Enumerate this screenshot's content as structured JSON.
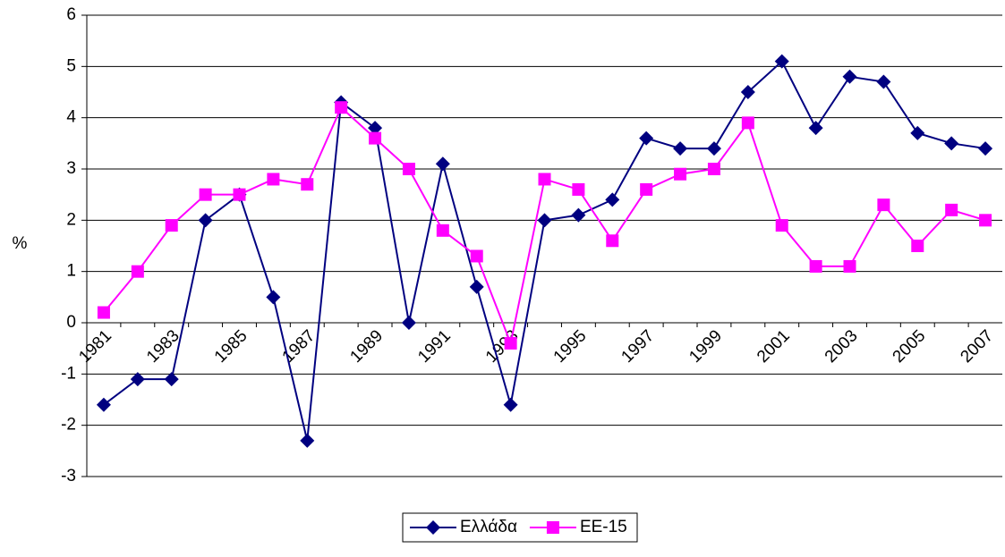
{
  "chart_data": {
    "type": "line",
    "y_label": "%",
    "categories": [
      "1981",
      null,
      "1983",
      null,
      "1985",
      null,
      "1987",
      null,
      "1989",
      null,
      "1991",
      null,
      "1993",
      null,
      "1995",
      null,
      "1997",
      null,
      "1999",
      null,
      "2001",
      null,
      "2003",
      null,
      "2005",
      null,
      "2007"
    ],
    "series": [
      {
        "name": "Ελλάδα",
        "color": "#000080",
        "marker": "diamond",
        "values": [
          -1.6,
          -1.1,
          -1.1,
          2.0,
          2.5,
          0.5,
          -2.3,
          4.3,
          3.8,
          0.0,
          3.1,
          0.7,
          -1.6,
          2.0,
          2.1,
          2.4,
          3.6,
          3.4,
          3.4,
          4.5,
          5.1,
          3.8,
          4.8,
          4.7,
          3.7,
          3.5,
          3.4
        ]
      },
      {
        "name": "ΕΕ-15",
        "color": "#ff00ff",
        "marker": "square",
        "values": [
          0.2,
          1.0,
          1.9,
          2.5,
          2.5,
          2.8,
          2.7,
          4.2,
          3.6,
          3.0,
          1.8,
          1.3,
          -0.4,
          2.8,
          2.6,
          1.6,
          2.6,
          2.9,
          3.0,
          3.9,
          1.9,
          1.1,
          1.1,
          2.3,
          1.5,
          2.2,
          2.0
        ]
      }
    ],
    "ylim": [
      -3,
      6
    ],
    "yticks": [
      -3,
      -2,
      -1,
      0,
      1,
      2,
      3,
      4,
      5,
      6
    ],
    "grid": true,
    "legend": "bottom"
  }
}
